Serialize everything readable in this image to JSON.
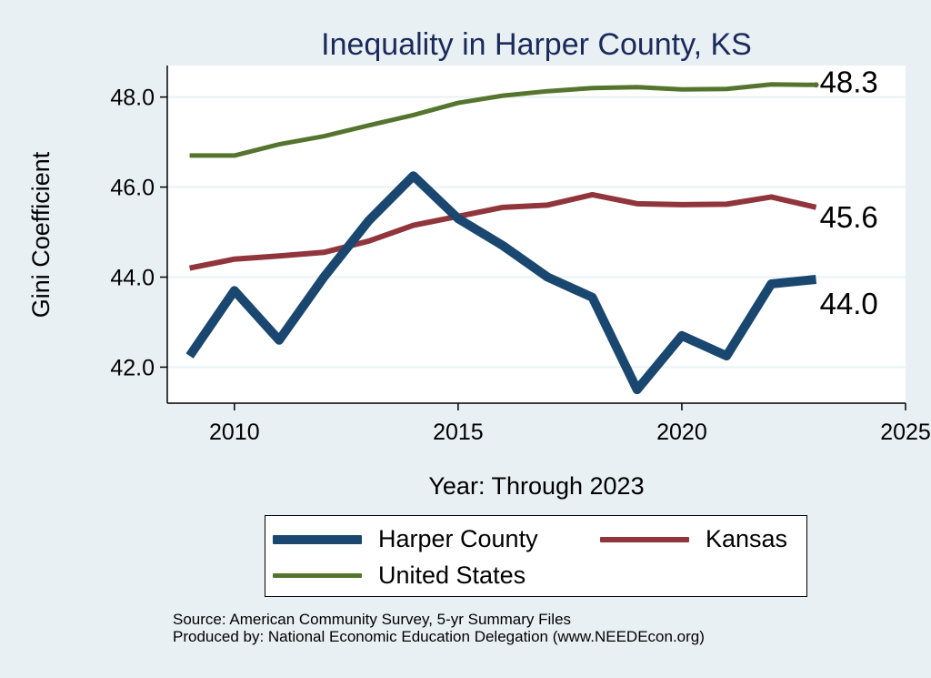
{
  "chart_data": {
    "type": "line",
    "title": "Inequality in Harper County, KS",
    "xlabel": "Year: Through 2023",
    "ylabel": "Gini Coefficient",
    "xlim": [
      2008.5,
      2025
    ],
    "ylim": [
      41.2,
      48.7
    ],
    "xticks": [
      2010,
      2015,
      2020,
      2025
    ],
    "xtick_labels": [
      "2010",
      "2015",
      "2020",
      "2025"
    ],
    "yticks": [
      42,
      44,
      46,
      48
    ],
    "ytick_labels": [
      "42.0",
      "44.0",
      "46.0",
      "48.0"
    ],
    "grid": true,
    "x": [
      2009,
      2010,
      2011,
      2012,
      2013,
      2014,
      2015,
      2016,
      2017,
      2018,
      2019,
      2020,
      2021,
      2022,
      2023
    ],
    "series": [
      {
        "name": "Harper County",
        "color": "#1a476f",
        "values": [
          42.25,
          43.7,
          42.6,
          44.0,
          45.25,
          46.25,
          45.3,
          44.7,
          44.0,
          43.55,
          41.5,
          42.7,
          42.25,
          43.85,
          43.95
        ],
        "end_label": "44.0"
      },
      {
        "name": "Kansas",
        "color": "#90353b",
        "values": [
          44.2,
          44.4,
          44.47,
          44.55,
          44.8,
          45.15,
          45.35,
          45.55,
          45.6,
          45.83,
          45.63,
          45.61,
          45.62,
          45.78,
          45.55
        ],
        "end_label": "45.6"
      },
      {
        "name": "United States",
        "color": "#55752f",
        "values": [
          46.7,
          46.7,
          46.95,
          47.13,
          47.37,
          47.6,
          47.87,
          48.03,
          48.13,
          48.2,
          48.22,
          48.17,
          48.18,
          48.28,
          48.27
        ],
        "end_label": "48.3"
      }
    ],
    "legend": [
      "Harper County",
      "Kansas",
      "United States"
    ],
    "legend_position": "bottom"
  },
  "footer": {
    "source": "Source: American Community Survey, 5-yr Summary Files",
    "producer": "Produced by: National Economic Education Delegation (www.NEEDEcon.org)"
  }
}
